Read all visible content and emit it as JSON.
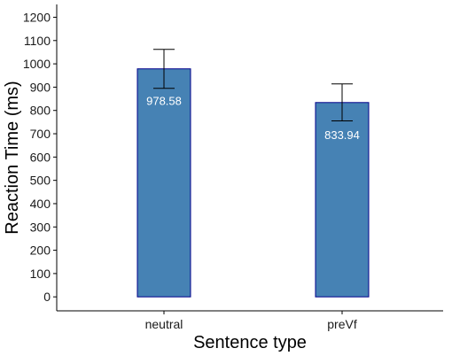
{
  "chart_data": {
    "type": "bar",
    "title": "",
    "xlabel": "Sentence type",
    "ylabel": "Reaction Time (ms)",
    "categories": [
      "neutral",
      "preVf"
    ],
    "values": [
      978.58,
      833.94
    ],
    "data_labels": [
      "978.58",
      "833.94"
    ],
    "error_bars": [
      {
        "lower": 895,
        "upper": 1062
      },
      {
        "lower": 755,
        "upper": 914
      }
    ],
    "ylim": [
      -60,
      1255
    ],
    "yticks": [
      0,
      100,
      200,
      300,
      400,
      500,
      600,
      700,
      800,
      900,
      1000,
      1100,
      1200
    ],
    "ytick_labels": [
      "0",
      "100",
      "200",
      "300",
      "400",
      "500",
      "600",
      "700",
      "800",
      "900",
      "1000",
      "1100",
      "1200"
    ],
    "grid": false,
    "legend": "none",
    "colors": {
      "bar_fill": "#4682b4",
      "bar_stroke": "#00008b",
      "error_bar": "#000000"
    }
  }
}
